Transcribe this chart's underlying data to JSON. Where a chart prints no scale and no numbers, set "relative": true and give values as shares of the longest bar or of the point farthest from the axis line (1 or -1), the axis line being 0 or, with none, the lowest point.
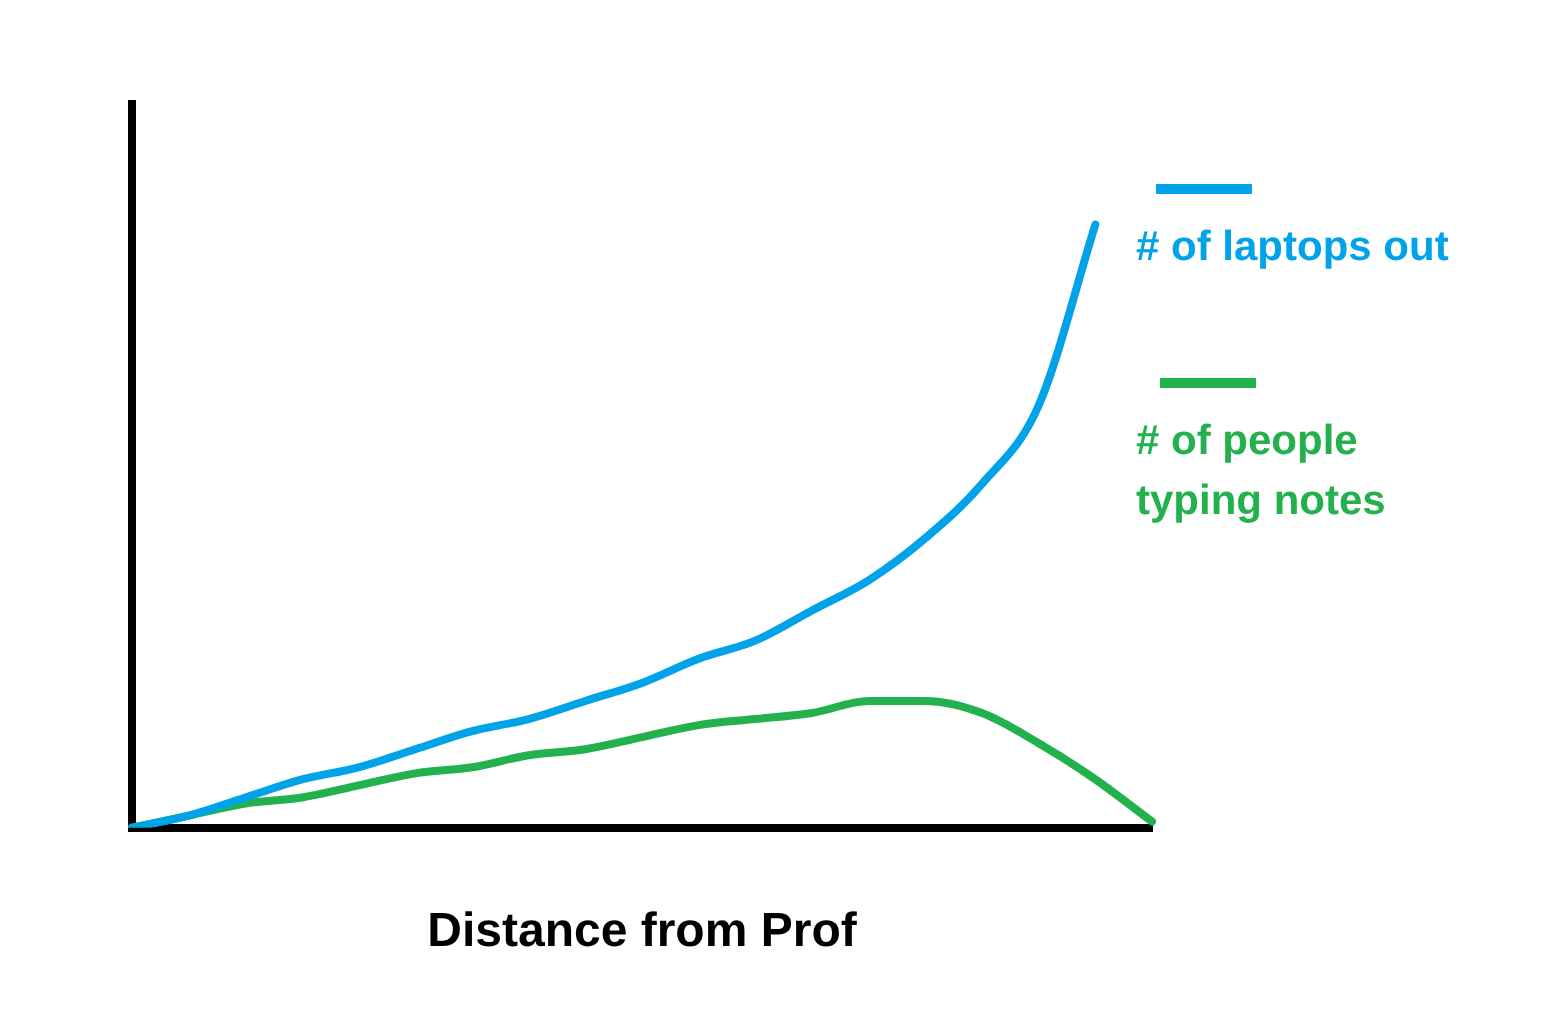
{
  "chart_data": {
    "type": "line",
    "relative": true,
    "xlabel": "Distance from Prof",
    "legend": "right",
    "grid": false,
    "marker": "none",
    "line_style": "solid",
    "categories": [
      null,
      null,
      null,
      null,
      null,
      null,
      null,
      null,
      null,
      null,
      null,
      null,
      null,
      null,
      null,
      null,
      null,
      null,
      null
    ],
    "series": [
      {
        "name": "# of laptops out",
        "color": "#00a2e8",
        "values": [
          0,
          0.02,
          0.05,
          0.08,
          0.1,
          0.13,
          0.16,
          0.18,
          0.21,
          0.24,
          0.28,
          0.31,
          0.36,
          0.41,
          0.48,
          0.57,
          0.7,
          1,
          null
        ]
      },
      {
        "name": "# of people typing notes",
        "color": "#22b14c",
        "values": [
          0,
          0.02,
          0.04,
          0.05,
          0.07,
          0.09,
          0.1,
          0.12,
          0.13,
          0.15,
          0.17,
          0.18,
          0.19,
          0.21,
          0.21,
          0.19,
          0.14,
          0.08,
          0.01
        ]
      }
    ]
  }
}
